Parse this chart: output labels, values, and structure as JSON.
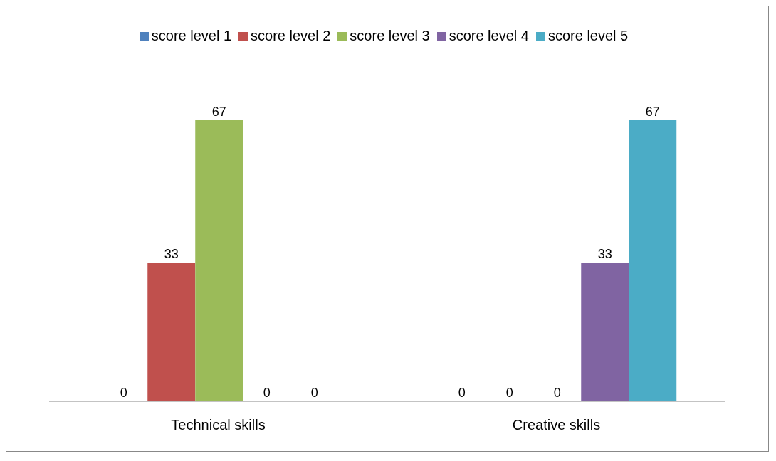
{
  "chart_data": {
    "type": "bar",
    "categories": [
      "Technical skills",
      "Creative skills"
    ],
    "series": [
      {
        "name": "score level 1",
        "color": "#4f81bd",
        "values": [
          0,
          0
        ]
      },
      {
        "name": "score level 2",
        "color": "#c0504d",
        "values": [
          33,
          0
        ]
      },
      {
        "name": "score level 3",
        "color": "#9bbb59",
        "values": [
          67,
          0
        ]
      },
      {
        "name": "score level 4",
        "color": "#8064a2",
        "values": [
          0,
          33
        ]
      },
      {
        "name": "score level 5",
        "color": "#4bacc6",
        "values": [
          0,
          67
        ]
      }
    ],
    "data_labels": true,
    "legend": "top",
    "grid": false
  }
}
